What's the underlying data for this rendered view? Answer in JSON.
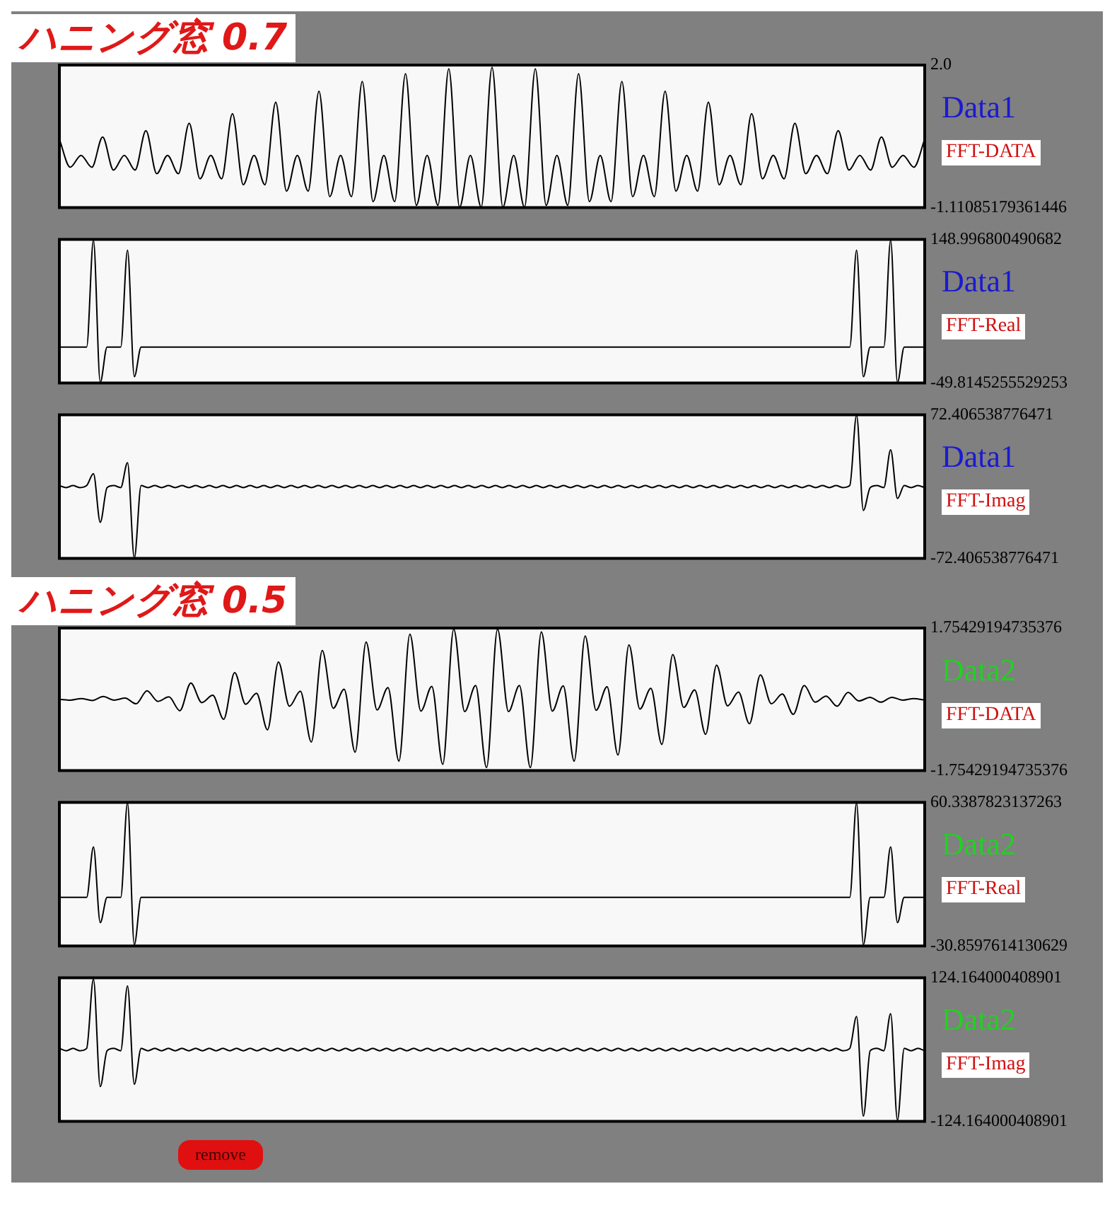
{
  "chart_data": [
    {
      "type": "line",
      "title": "ハニング窓 0.7",
      "annotations": [
        "Data1",
        "FFT-DATA"
      ],
      "tick_labels": "y",
      "marker": "none",
      "ylim": [
        -1.11085179361446,
        2.0
      ],
      "yticks": [
        {
          "value": 2.0,
          "label": "2.0"
        },
        {
          "value": -1.11085179361446,
          "label": "-1.11085179361446"
        }
      ],
      "categories": [
        null,
        null,
        null,
        null,
        null,
        null,
        null,
        null,
        null,
        null,
        null,
        null,
        null,
        null,
        null,
        null,
        null,
        null,
        null,
        null,
        null,
        null,
        null,
        null,
        null,
        null,
        null,
        null,
        null,
        null,
        null,
        null,
        null,
        null,
        null,
        null,
        null,
        null,
        null,
        null,
        null,
        null,
        null,
        null,
        null,
        null,
        null,
        null,
        null,
        null,
        null,
        null,
        null,
        null,
        null,
        null,
        null,
        null,
        null,
        null,
        null,
        null,
        null,
        null,
        null,
        null,
        null,
        null,
        null,
        null,
        null,
        null,
        null,
        null,
        null,
        null,
        null,
        null,
        null,
        null,
        null
      ],
      "series": [
        {
          "color": "#000000",
          "values": [
            0.38,
            -0.23,
            0.03,
            -0.23,
            0.43,
            -0.29,
            0.03,
            -0.29,
            0.57,
            -0.37,
            0.03,
            -0.37,
            0.73,
            -0.48,
            0.03,
            -0.48,
            0.94,
            -0.61,
            0.03,
            -0.61,
            1.19,
            -0.75,
            0.03,
            -0.75,
            1.43,
            -0.87,
            0.03,
            -0.87,
            1.64,
            -0.98,
            0.03,
            -0.98,
            1.81,
            -1.06,
            0.03,
            -1.06,
            1.92,
            -1.1,
            0.03,
            -1.1,
            1.95,
            -1.1,
            0.03,
            -1.1,
            1.92,
            -1.06,
            0.03,
            -1.06,
            1.81,
            -0.98,
            0.03,
            -0.98,
            1.64,
            -0.87,
            0.03,
            -0.87,
            1.43,
            -0.75,
            0.03,
            -0.75,
            1.19,
            -0.61,
            0.03,
            -0.61,
            0.94,
            -0.48,
            0.03,
            -0.48,
            0.73,
            -0.37,
            0.03,
            -0.37,
            0.57,
            -0.29,
            0.03,
            -0.29,
            0.43,
            -0.23,
            0.03,
            -0.23,
            0.38
          ]
        }
      ]
    },
    {
      "type": "line",
      "annotations": [
        "Data1",
        "FFT-Real"
      ],
      "tick_labels": "y",
      "marker": "none",
      "ylim": [
        -49.8145255529253,
        148.996800490682
      ],
      "yticks": [
        {
          "value": 148.996800490682,
          "label": "148.996800490682"
        },
        {
          "value": -49.8145255529253,
          "label": "-49.8145255529253"
        }
      ],
      "categories": [
        null,
        null,
        null,
        null,
        null,
        null,
        null,
        null,
        null,
        null,
        null,
        null,
        null,
        null,
        null,
        null,
        null,
        null,
        null,
        null,
        null,
        null,
        null,
        null,
        null,
        null,
        null,
        null,
        null,
        null,
        null,
        null,
        null,
        null,
        null,
        null,
        null,
        null,
        null,
        null,
        null,
        null,
        null,
        null,
        null,
        null,
        null,
        null,
        null,
        null,
        null,
        null,
        null,
        null,
        null,
        null,
        null,
        null,
        null,
        null,
        null,
        null,
        null,
        null,
        null,
        null,
        null,
        null,
        null,
        null,
        null,
        null,
        null,
        null,
        null,
        null,
        null,
        null,
        null,
        null,
        null,
        null,
        null,
        null,
        null,
        null,
        null,
        null,
        null,
        null,
        null,
        null,
        null,
        null,
        null,
        null,
        null,
        null,
        null,
        null,
        null,
        null,
        null,
        null,
        null,
        null,
        null,
        null,
        null,
        null,
        null,
        null,
        null,
        null,
        null,
        null,
        null,
        null,
        null,
        null,
        null,
        null,
        null,
        null,
        null,
        null,
        null,
        null
      ],
      "series": [
        {
          "color": "#000000",
          "values": [
            0,
            0,
            0,
            0,
            0,
            148,
            -49,
            0,
            0,
            0,
            134,
            -41,
            0,
            0,
            0,
            0,
            0,
            0,
            0,
            0,
            0,
            0,
            0,
            0,
            0,
            0,
            0,
            0,
            0,
            0,
            0,
            0,
            0,
            0,
            0,
            0,
            0,
            0,
            0,
            0,
            0,
            0,
            0,
            0,
            0,
            0,
            0,
            0,
            0,
            0,
            0,
            0,
            0,
            0,
            0,
            0,
            0,
            0,
            0,
            0,
            0,
            0,
            0,
            0,
            0,
            0,
            0,
            0,
            0,
            0,
            0,
            0,
            0,
            0,
            0,
            0,
            0,
            0,
            0,
            0,
            0,
            0,
            0,
            0,
            0,
            0,
            0,
            0,
            0,
            0,
            0,
            0,
            0,
            0,
            0,
            0,
            0,
            0,
            0,
            0,
            0,
            0,
            0,
            0,
            0,
            0,
            0,
            0,
            0,
            0,
            0,
            0,
            0,
            0,
            0,
            0,
            0,
            134,
            -41,
            0,
            0,
            0,
            148,
            -49,
            0,
            0,
            0,
            0
          ]
        }
      ]
    },
    {
      "type": "line",
      "annotations": [
        "Data1",
        "FFT-Imag"
      ],
      "tick_labels": "y",
      "marker": "none",
      "ylim": [
        -72.406538776471,
        72.406538776471
      ],
      "yticks": [
        {
          "value": 72.406538776471,
          "label": "72.406538776471"
        },
        {
          "value": -72.406538776471,
          "label": "-72.406538776471"
        }
      ],
      "categories": [
        null,
        null,
        null,
        null,
        null,
        null,
        null,
        null,
        null,
        null,
        null,
        null,
        null,
        null,
        null,
        null,
        null,
        null,
        null,
        null,
        null,
        null,
        null,
        null,
        null,
        null,
        null,
        null,
        null,
        null,
        null,
        null,
        null,
        null,
        null,
        null,
        null,
        null,
        null,
        null,
        null,
        null,
        null,
        null,
        null,
        null,
        null,
        null,
        null,
        null,
        null,
        null,
        null,
        null,
        null,
        null,
        null,
        null,
        null,
        null,
        null,
        null,
        null,
        null,
        null,
        null,
        null,
        null,
        null,
        null,
        null,
        null,
        null,
        null,
        null,
        null,
        null,
        null,
        null,
        null,
        null,
        null,
        null,
        null,
        null,
        null,
        null,
        null,
        null,
        null,
        null,
        null,
        null,
        null,
        null,
        null,
        null,
        null,
        null,
        null,
        null,
        null,
        null,
        null,
        null,
        null,
        null,
        null,
        null,
        null,
        null,
        null,
        null,
        null,
        null,
        null,
        null,
        null,
        null,
        null,
        null,
        null,
        null,
        null,
        null,
        null,
        null,
        null
      ],
      "series": [
        {
          "color": "#000000",
          "values": [
            1,
            -1,
            1,
            -1,
            1,
            13,
            -36,
            -1,
            1,
            -1,
            24,
            -72,
            1,
            -1,
            1,
            -1,
            1,
            -1,
            1,
            -1,
            1,
            -1,
            1,
            -1,
            1,
            -1,
            1,
            -1,
            1,
            -1,
            1,
            -1,
            1,
            -1,
            1,
            -1,
            1,
            -1,
            1,
            -1,
            1,
            -1,
            1,
            -1,
            1,
            -1,
            1,
            -1,
            1,
            -1,
            1,
            -1,
            1,
            -1,
            1,
            -1,
            1,
            -1,
            1,
            -1,
            1,
            -1,
            1,
            -1,
            1,
            -1,
            1,
            -1,
            1,
            -1,
            1,
            -1,
            1,
            -1,
            1,
            -1,
            1,
            -1,
            1,
            -1,
            1,
            -1,
            1,
            -1,
            1,
            -1,
            1,
            -1,
            1,
            -1,
            1,
            -1,
            1,
            -1,
            1,
            -1,
            1,
            -1,
            1,
            -1,
            1,
            -1,
            1,
            -1,
            1,
            -1,
            1,
            -1,
            1,
            -1,
            1,
            -1,
            1,
            -1,
            1,
            -1,
            1,
            72,
            -24,
            -1,
            1,
            -1,
            37,
            -12,
            1,
            -1,
            1,
            -1
          ]
        }
      ]
    },
    {
      "type": "line",
      "title": "ハニング窓 0.5",
      "annotations": [
        "Data2",
        "FFT-DATA"
      ],
      "tick_labels": "y",
      "marker": "none",
      "ylim": [
        -1.75429194735376,
        1.75429194735376
      ],
      "yticks": [
        {
          "value": 1.75429194735376,
          "label": "1.75429194735376"
        },
        {
          "value": -1.75429194735376,
          "label": "-1.75429194735376"
        }
      ],
      "categories": [
        null,
        null,
        null,
        null,
        null,
        null,
        null,
        null,
        null,
        null,
        null,
        null,
        null,
        null,
        null,
        null,
        null,
        null,
        null,
        null,
        null,
        null,
        null,
        null,
        null,
        null,
        null,
        null,
        null,
        null,
        null,
        null,
        null,
        null,
        null,
        null,
        null,
        null,
        null,
        null,
        null,
        null,
        null,
        null,
        null,
        null,
        null,
        null,
        null,
        null,
        null,
        null,
        null,
        null,
        null,
        null,
        null,
        null,
        null,
        null,
        null,
        null,
        null,
        null,
        null,
        null,
        null,
        null,
        null,
        null,
        null,
        null,
        null,
        null,
        null,
        null,
        null,
        null,
        null,
        null
      ],
      "series": [
        {
          "color": "#000000",
          "values": [
            0.0,
            -0.02,
            0.02,
            -0.03,
            0.07,
            -0.02,
            0.03,
            -0.11,
            0.21,
            -0.05,
            0.06,
            -0.28,
            0.4,
            -0.08,
            0.1,
            -0.49,
            0.66,
            -0.12,
            0.15,
            -0.75,
            0.92,
            -0.17,
            0.2,
            -1.05,
            1.2,
            -0.22,
            0.25,
            -1.3,
            1.41,
            -0.26,
            0.29,
            -1.52,
            1.6,
            -0.29,
            0.32,
            -1.6,
            1.73,
            -0.3,
            0.34,
            -1.68,
            1.73,
            -0.3,
            0.34,
            -1.68,
            1.66,
            -0.29,
            0.33,
            -1.52,
            1.56,
            -0.27,
            0.31,
            -1.37,
            1.34,
            -0.24,
            0.27,
            -1.11,
            1.1,
            -0.2,
            0.23,
            -0.86,
            0.84,
            -0.16,
            0.18,
            -0.6,
            0.6,
            -0.11,
            0.13,
            -0.37,
            0.34,
            -0.07,
            0.08,
            -0.17,
            0.17,
            -0.04,
            0.05,
            -0.07,
            0.05,
            -0.02,
            0.02,
            -0.02
          ]
        }
      ]
    },
    {
      "type": "line",
      "annotations": [
        "Data2",
        "FFT-Real"
      ],
      "tick_labels": "y",
      "marker": "none",
      "ylim": [
        -30.8597614130629,
        60.3387823137263
      ],
      "yticks": [
        {
          "value": 60.3387823137263,
          "label": "60.3387823137263"
        },
        {
          "value": -30.8597614130629,
          "label": "-30.8597614130629"
        }
      ],
      "categories": [
        null,
        null,
        null,
        null,
        null,
        null,
        null,
        null,
        null,
        null,
        null,
        null,
        null,
        null,
        null,
        null,
        null,
        null,
        null,
        null,
        null,
        null,
        null,
        null,
        null,
        null,
        null,
        null,
        null,
        null,
        null,
        null,
        null,
        null,
        null,
        null,
        null,
        null,
        null,
        null,
        null,
        null,
        null,
        null,
        null,
        null,
        null,
        null,
        null,
        null,
        null,
        null,
        null,
        null,
        null,
        null,
        null,
        null,
        null,
        null,
        null,
        null,
        null,
        null,
        null,
        null,
        null,
        null,
        null,
        null,
        null,
        null,
        null,
        null,
        null,
        null,
        null,
        null,
        null,
        null,
        null,
        null,
        null,
        null,
        null,
        null,
        null,
        null,
        null,
        null,
        null,
        null,
        null,
        null,
        null,
        null,
        null,
        null,
        null,
        null,
        null,
        null,
        null,
        null,
        null,
        null,
        null,
        null,
        null,
        null,
        null,
        null,
        null,
        null,
        null,
        null,
        null,
        null,
        null,
        null,
        null,
        null,
        null,
        null,
        null,
        null,
        null,
        null
      ],
      "series": [
        {
          "color": "#000000",
          "values": [
            0,
            0,
            0,
            0,
            0,
            32,
            -16,
            0,
            0,
            0,
            60,
            -30,
            0,
            0,
            0,
            0,
            0,
            0,
            0,
            0,
            0,
            0,
            0,
            0,
            0,
            0,
            0,
            0,
            0,
            0,
            0,
            0,
            0,
            0,
            0,
            0,
            0,
            0,
            0,
            0,
            0,
            0,
            0,
            0,
            0,
            0,
            0,
            0,
            0,
            0,
            0,
            0,
            0,
            0,
            0,
            0,
            0,
            0,
            0,
            0,
            0,
            0,
            0,
            0,
            0,
            0,
            0,
            0,
            0,
            0,
            0,
            0,
            0,
            0,
            0,
            0,
            0,
            0,
            0,
            0,
            0,
            0,
            0,
            0,
            0,
            0,
            0,
            0,
            0,
            0,
            0,
            0,
            0,
            0,
            0,
            0,
            0,
            0,
            0,
            0,
            0,
            0,
            0,
            0,
            0,
            0,
            0,
            0,
            0,
            0,
            0,
            0,
            0,
            0,
            0,
            0,
            0,
            60,
            -30,
            0,
            0,
            0,
            32,
            -16,
            0,
            0,
            0,
            0
          ]
        }
      ]
    },
    {
      "type": "line",
      "annotations": [
        "Data2",
        "FFT-Imag",
        "remove"
      ],
      "tick_labels": "y",
      "marker": "none",
      "ylim": [
        -124.164000408901,
        124.164000408901
      ],
      "yticks": [
        {
          "value": 124.164000408901,
          "label": "124.164000408901"
        },
        {
          "value": -124.164000408901,
          "label": "-124.164000408901"
        }
      ],
      "categories": [
        null,
        null,
        null,
        null,
        null,
        null,
        null,
        null,
        null,
        null,
        null,
        null,
        null,
        null,
        null,
        null,
        null,
        null,
        null,
        null,
        null,
        null,
        null,
        null,
        null,
        null,
        null,
        null,
        null,
        null,
        null,
        null,
        null,
        null,
        null,
        null,
        null,
        null,
        null,
        null,
        null,
        null,
        null,
        null,
        null,
        null,
        null,
        null,
        null,
        null,
        null,
        null,
        null,
        null,
        null,
        null,
        null,
        null,
        null,
        null,
        null,
        null,
        null,
        null,
        null,
        null,
        null,
        null,
        null,
        null,
        null,
        null,
        null,
        null,
        null,
        null,
        null,
        null,
        null,
        null,
        null,
        null,
        null,
        null,
        null,
        null,
        null,
        null,
        null,
        null,
        null,
        null,
        null,
        null,
        null,
        null,
        null,
        null,
        null,
        null,
        null,
        null,
        null,
        null,
        null,
        null,
        null,
        null,
        null,
        null,
        null,
        null,
        null,
        null,
        null,
        null,
        null,
        null,
        null,
        null,
        null,
        null,
        null,
        null,
        null,
        null,
        null,
        null
      ],
      "series": [
        {
          "color": "#000000",
          "values": [
            2,
            -2,
            2,
            -2,
            2,
            122,
            -64,
            -2,
            2,
            -2,
            110,
            -60,
            2,
            -2,
            2,
            -2,
            2,
            -2,
            2,
            -2,
            2,
            -2,
            2,
            -2,
            2,
            -2,
            2,
            -2,
            2,
            -2,
            2,
            -2,
            2,
            -2,
            2,
            -2,
            2,
            -2,
            2,
            -2,
            2,
            -2,
            2,
            -2,
            2,
            -2,
            2,
            -2,
            2,
            -2,
            2,
            -2,
            2,
            -2,
            2,
            -2,
            2,
            -2,
            2,
            -2,
            2,
            -2,
            2,
            -2,
            2,
            -2,
            2,
            -2,
            2,
            -2,
            2,
            -2,
            2,
            -2,
            2,
            -2,
            2,
            -2,
            2,
            -2,
            2,
            -2,
            2,
            -2,
            2,
            -2,
            2,
            -2,
            2,
            -2,
            2,
            -2,
            2,
            -2,
            2,
            -2,
            2,
            -2,
            2,
            -2,
            2,
            -2,
            2,
            -2,
            2,
            -2,
            2,
            -2,
            2,
            -2,
            2,
            -2,
            2,
            -2,
            2,
            -2,
            2,
            57,
            -115,
            -2,
            2,
            -2,
            62,
            -122,
            2,
            -2,
            2,
            -2
          ]
        }
      ]
    }
  ]
}
